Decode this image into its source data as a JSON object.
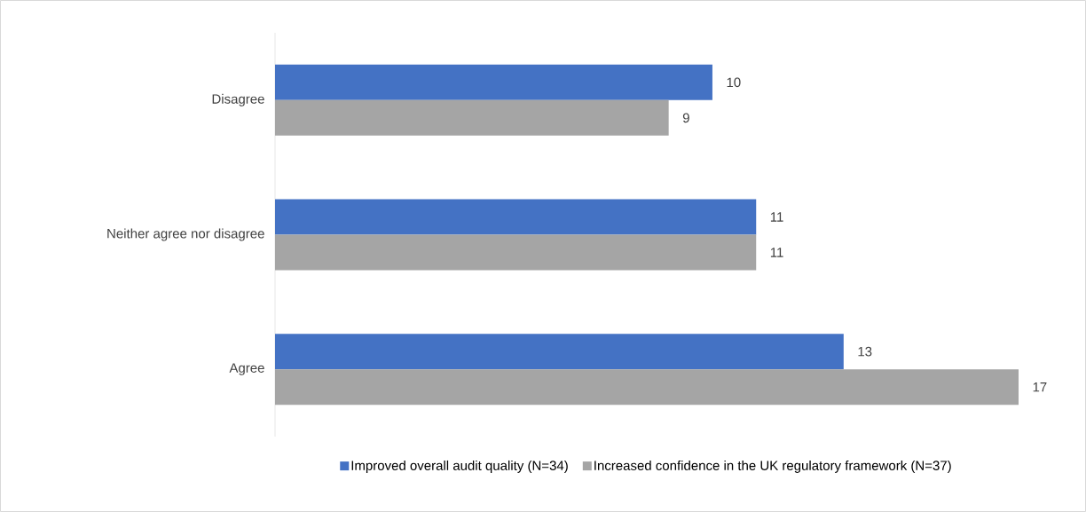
{
  "chart_data": {
    "type": "bar",
    "orientation": "horizontal",
    "categories": [
      "Disagree",
      "Neither agree nor disagree",
      "Agree"
    ],
    "series": [
      {
        "name": "Improved overall audit quality (N=34)",
        "color": "#4472c4",
        "values": [
          10,
          11,
          13
        ]
      },
      {
        "name": "Increased confidence in the UK regulatory framework (N=37)",
        "color": "#a5a5a5",
        "values": [
          9,
          11,
          17
        ]
      }
    ],
    "tick_labels": "y",
    "data_labels": true,
    "legend": "bottom",
    "grid": false
  }
}
